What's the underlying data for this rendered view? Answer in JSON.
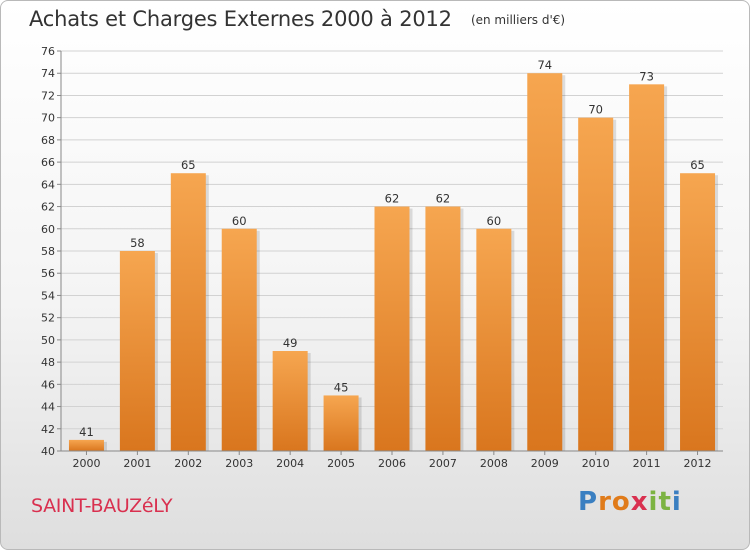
{
  "title": "Achats et Charges Externes 2000 à 2012",
  "unit": "(en milliers d'€)",
  "commune": "SAINT-BAUZéLY",
  "logo": {
    "letters": [
      "P",
      "r",
      "o",
      "x",
      "i",
      "t",
      "i"
    ],
    "colors": [
      "#3a7fc1",
      "#e07b1a",
      "#e07b1a",
      "#d9304f",
      "#7cb342",
      "#7cb342",
      "#3a7fc1"
    ]
  },
  "colors": {
    "bar_light": "#f6a650",
    "bar_dark": "#d9761e",
    "grid": "#d2d2d2",
    "axis": "#888888"
  },
  "chart_data": {
    "type": "bar",
    "title": "Achats et Charges Externes 2000 à 2012",
    "categories": [
      "2000",
      "2001",
      "2002",
      "2003",
      "2004",
      "2005",
      "2006",
      "2007",
      "2008",
      "2009",
      "2010",
      "2011",
      "2012"
    ],
    "values": [
      41,
      58,
      65,
      60,
      49,
      45,
      62,
      62,
      60,
      74,
      70,
      73,
      65
    ],
    "ylim": [
      40,
      76
    ],
    "ytick_step": 2,
    "xlabel": "",
    "ylabel": "",
    "grid": true,
    "legend": "none"
  }
}
